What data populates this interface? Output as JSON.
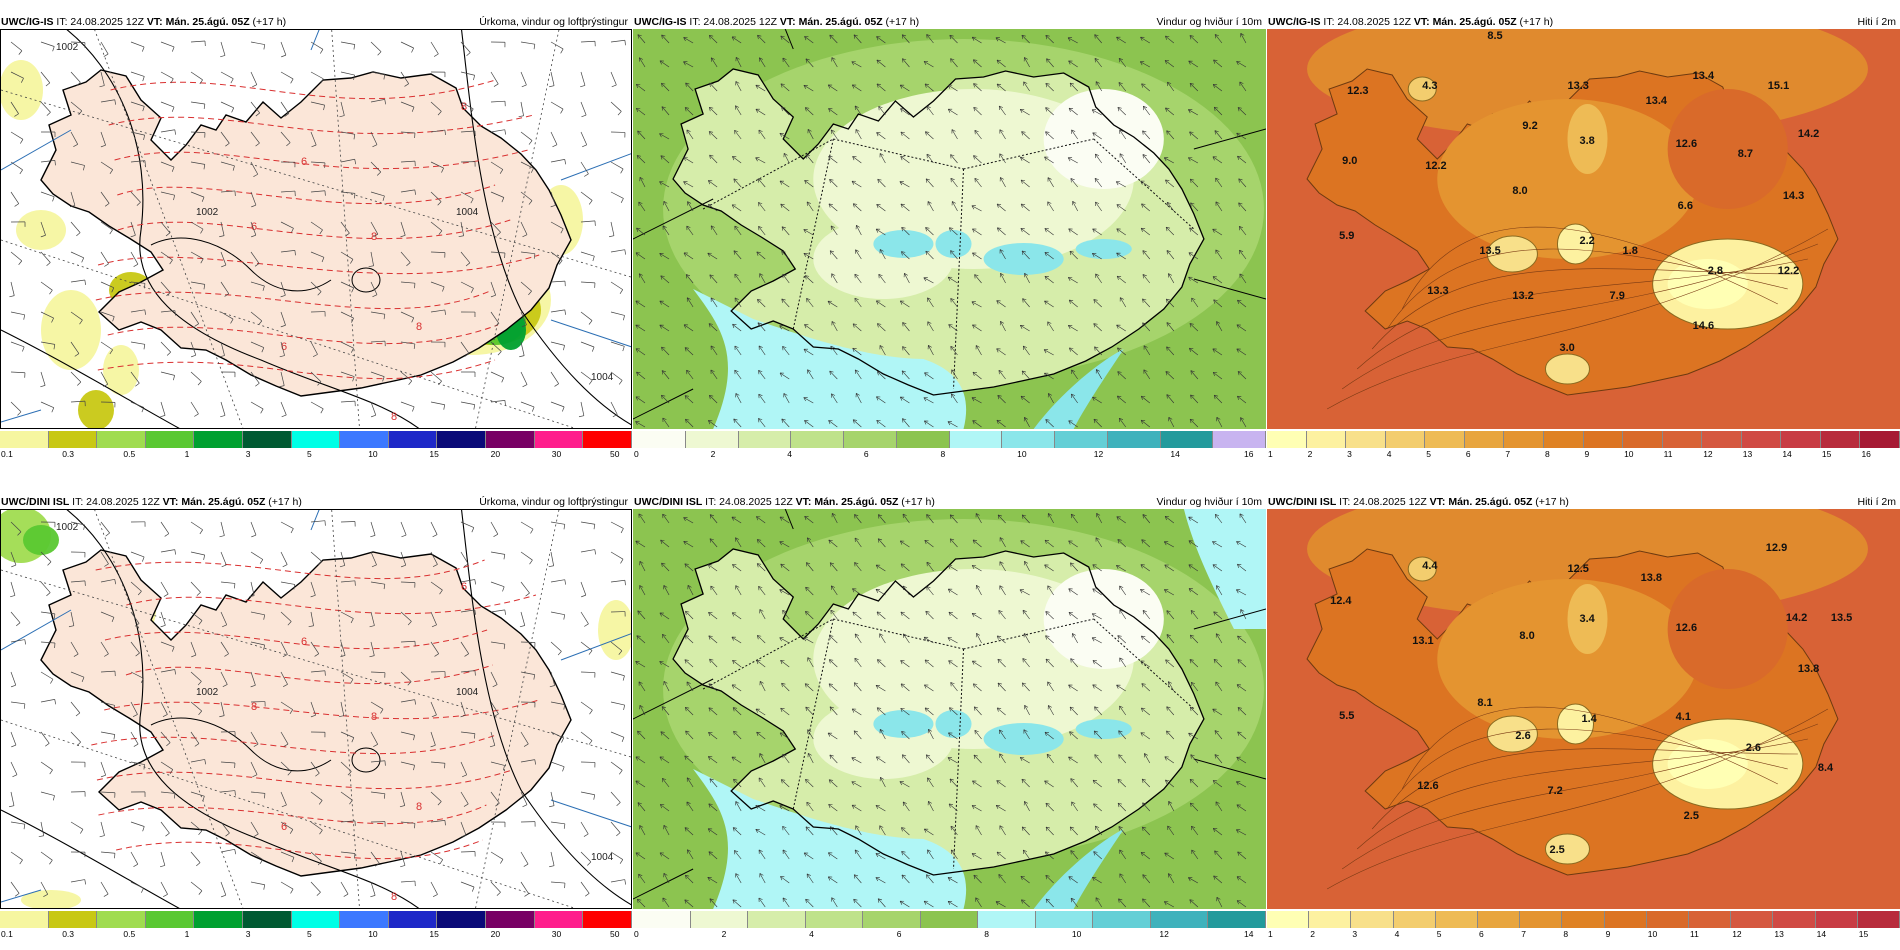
{
  "panels": [
    {
      "model": "UWC/IG-IS",
      "it_label": "IT: 24.08.2025 12Z",
      "vt_label": "VT: Mán. 25.ágú. 05Z",
      "lead": "(+17 h)",
      "title": "Úrkoma, vindur og loftþrýstingur",
      "kind": "precip",
      "colorbar": {
        "colors": [
          "#f6f6a0",
          "#c8c814",
          "#a0dc50",
          "#5ac832",
          "#00a030",
          "#005a32",
          "#00ffe6",
          "#3c78ff",
          "#1e28c8",
          "#0a0a78",
          "#780064",
          "#ff1e8c",
          "#ff0000"
        ],
        "ticks": [
          "0.1",
          "0.3",
          "0.5",
          "1",
          "3",
          "5",
          "10",
          "15",
          "20",
          "30",
          "50"
        ]
      },
      "isobar_labels": [
        "1002",
        "1002",
        "1004",
        "1004"
      ],
      "dashed_labels": [
        "6",
        "6",
        "8",
        "8",
        "8",
        "6",
        "8"
      ]
    },
    {
      "model": "UWC/IG-IS",
      "it_label": "IT: 24.08.2025 12Z",
      "vt_label": "VT: Mán. 25.ágú. 05Z",
      "lead": "(+17 h)",
      "title": "Vindur og hviður í 10m",
      "kind": "wind",
      "colorbar": {
        "colors": [
          "#fbfdf3",
          "#eef8d2",
          "#d6edaa",
          "#bfe28a",
          "#a6d46c",
          "#8cc450",
          "#b0f6f6",
          "#8be6ea",
          "#64cfd6",
          "#3fb2bc",
          "#239a9c",
          "#c8b4f0"
        ],
        "ticks": [
          "0",
          "2",
          "4",
          "6",
          "8",
          "10",
          "12",
          "14",
          "16"
        ]
      }
    },
    {
      "model": "UWC/IG-IS",
      "it_label": "IT: 24.08.2025 12Z",
      "vt_label": "VT: Mán. 25.ágú. 05Z",
      "lead": "(+17 h)",
      "title": "Hiti í 2m",
      "kind": "temp",
      "colorbar": {
        "colors": [
          "#ffffb4",
          "#fdf1a0",
          "#f8e08a",
          "#f3cd6e",
          "#eebb55",
          "#e8a53e",
          "#e49430",
          "#df8224",
          "#dc7422",
          "#d96a2a",
          "#d86236",
          "#d55840",
          "#d04a44",
          "#c83c44",
          "#b82c3c",
          "#a61a34"
        ],
        "ticks": [
          "1",
          "2",
          "3",
          "4",
          "5",
          "6",
          "7",
          "8",
          "9",
          "10",
          "11",
          "12",
          "13",
          "14",
          "15",
          "16"
        ]
      },
      "temps": [
        "8.5",
        "12.3",
        "4.3",
        "13.3",
        "13.4",
        "15.1",
        "9.2",
        "13.4",
        "3.8",
        "9.0",
        "12.2",
        "12.6",
        "8.7",
        "14.2",
        "8.0",
        "6.6",
        "14.3",
        "5.9",
        "13.5",
        "2.2",
        "1.8",
        "2.8",
        "12.2",
        "13.3",
        "13.2",
        "7.9",
        "14.6",
        "3.0"
      ]
    },
    {
      "model": "UWC/DINI ISL",
      "it_label": "IT: 24.08.2025 12Z",
      "vt_label": "VT: Mán. 25.ágú. 05Z",
      "lead": "(+17 h)",
      "title": "Úrkoma, vindur og loftþrýstingur",
      "kind": "precip",
      "colorbar": {
        "colors": [
          "#f6f6a0",
          "#c8c814",
          "#a0dc50",
          "#5ac832",
          "#00a030",
          "#005a32",
          "#00ffe6",
          "#3c78ff",
          "#1e28c8",
          "#0a0a78",
          "#780064",
          "#ff1e8c",
          "#ff0000"
        ],
        "ticks": [
          "0.1",
          "0.3",
          "0.5",
          "1",
          "3",
          "5",
          "10",
          "15",
          "20",
          "30",
          "50"
        ]
      },
      "isobar_labels": [
        "1002",
        "1002",
        "1004",
        "1004"
      ],
      "dashed_labels": [
        "6",
        "8",
        "8",
        "6",
        "8",
        "6",
        "8"
      ]
    },
    {
      "model": "UWC/DINI ISL",
      "it_label": "IT: 24.08.2025 12Z",
      "vt_label": "VT: Mán. 25.ágú. 05Z",
      "lead": "(+17 h)",
      "title": "Vindur og hviður í 10m",
      "kind": "wind",
      "colorbar": {
        "colors": [
          "#fbfdf3",
          "#eef8d2",
          "#d6edaa",
          "#bfe28a",
          "#a6d46c",
          "#8cc450",
          "#b0f6f6",
          "#8be6ea",
          "#64cfd6",
          "#3fb2bc",
          "#239a9c"
        ],
        "ticks": [
          "0",
          "2",
          "4",
          "6",
          "8",
          "10",
          "12",
          "14"
        ]
      }
    },
    {
      "model": "UWC/DINI ISL",
      "it_label": "IT: 24.08.2025 12Z",
      "vt_label": "VT: Mán. 25.ágú. 05Z",
      "lead": "(+17 h)",
      "title": "Hiti í 2m",
      "kind": "temp",
      "colorbar": {
        "colors": [
          "#ffffb4",
          "#fdf1a0",
          "#f8e08a",
          "#f3cd6e",
          "#eebb55",
          "#e8a53e",
          "#e49430",
          "#df8224",
          "#dc7422",
          "#d96a2a",
          "#d86236",
          "#d55840",
          "#d04a44",
          "#c83c44",
          "#b82c3c"
        ],
        "ticks": [
          "1",
          "2",
          "3",
          "4",
          "5",
          "6",
          "7",
          "8",
          "9",
          "10",
          "11",
          "12",
          "13",
          "14",
          "15"
        ]
      },
      "temps": [
        "4.4",
        "12.5",
        "13.8",
        "12.9",
        "12.4",
        "14.2",
        "13.5",
        "3.4",
        "12.6",
        "13.1",
        "8.0",
        "13.8",
        "8.1",
        "5.5",
        "2.6",
        "1.4",
        "4.1",
        "2.6",
        "8.4",
        "12.6",
        "7.2",
        "2.5",
        "2.5"
      ]
    }
  ]
}
